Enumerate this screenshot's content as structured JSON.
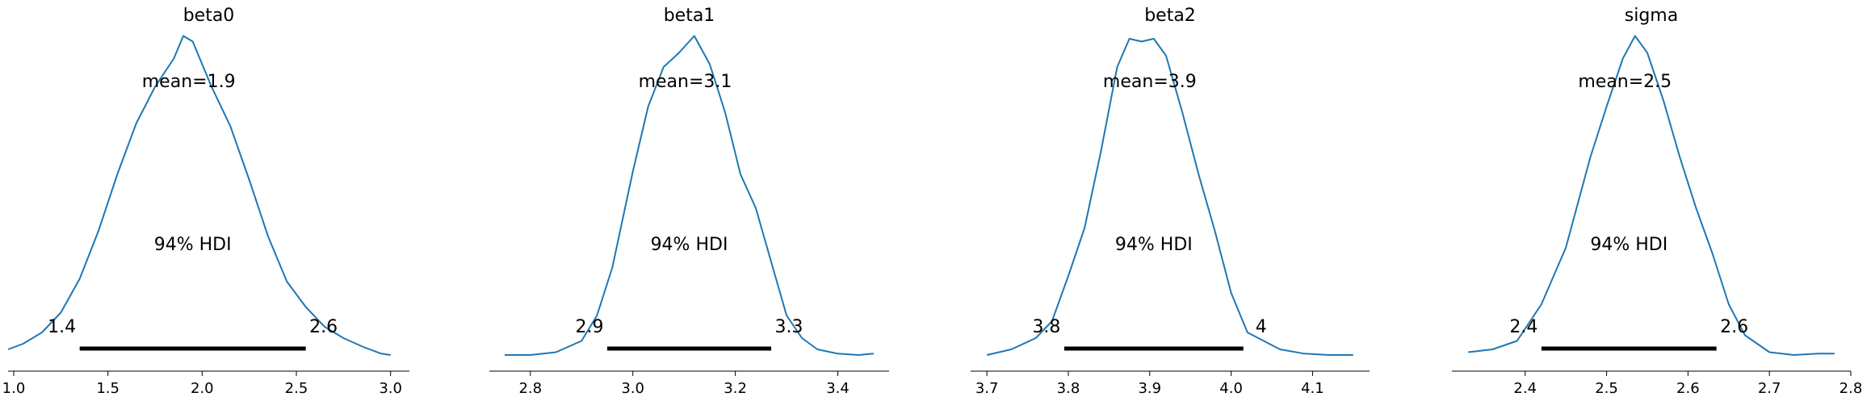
{
  "chart_data": [
    {
      "type": "line",
      "title": "beta0",
      "mean_label": "mean=1.9",
      "hdi_label": "94% HDI",
      "hdi": [
        1.35,
        2.55
      ],
      "hdi_low_label": "1.4",
      "hdi_high_label": "2.6",
      "xlim": [
        0.97,
        3.1
      ],
      "x_ticks": [
        1.0,
        1.5,
        2.0,
        2.5,
        3.0
      ],
      "x_tick_labels": [
        "1.0",
        "1.5",
        "2.0",
        "2.5",
        "3.0"
      ],
      "color": "#1f77b4",
      "density": {
        "x": [
          0.97,
          1.05,
          1.15,
          1.25,
          1.35,
          1.45,
          1.55,
          1.65,
          1.75,
          1.85,
          1.9,
          1.95,
          2.0,
          2.05,
          2.15,
          2.25,
          2.35,
          2.45,
          2.55,
          2.65,
          2.75,
          2.85,
          2.95,
          3.0
        ],
        "y": [
          0.02,
          0.04,
          0.08,
          0.15,
          0.27,
          0.44,
          0.64,
          0.82,
          0.95,
          1.05,
          1.13,
          1.11,
          1.03,
          0.95,
          0.81,
          0.62,
          0.42,
          0.26,
          0.17,
          0.1,
          0.06,
          0.03,
          0.005,
          0.0
        ]
      }
    },
    {
      "type": "line",
      "title": "beta1",
      "mean_label": "mean=3.1",
      "hdi_label": "94% HDI",
      "hdi": [
        2.95,
        3.27
      ],
      "hdi_low_label": "2.9",
      "hdi_high_label": "3.3",
      "xlim": [
        2.72,
        3.5
      ],
      "x_ticks": [
        2.8,
        3.0,
        3.2,
        3.4
      ],
      "x_tick_labels": [
        "2.8",
        "3.0",
        "3.2",
        "3.4"
      ],
      "color": "#1f77b4",
      "density": {
        "x": [
          2.75,
          2.8,
          2.85,
          2.9,
          2.93,
          2.96,
          3.0,
          3.03,
          3.06,
          3.09,
          3.12,
          3.15,
          3.18,
          3.21,
          3.24,
          3.27,
          3.3,
          3.33,
          3.36,
          3.4,
          3.44,
          3.47
        ],
        "y": [
          0.0,
          0.0,
          0.01,
          0.05,
          0.14,
          0.31,
          0.65,
          0.88,
          1.02,
          1.07,
          1.13,
          1.03,
          0.86,
          0.64,
          0.52,
          0.33,
          0.14,
          0.06,
          0.02,
          0.005,
          0.0,
          0.005
        ]
      }
    },
    {
      "type": "line",
      "title": "beta2",
      "mean_label": "mean=3.9",
      "hdi_label": "94% HDI",
      "hdi": [
        3.795,
        4.015
      ],
      "hdi_low_label": "3.8",
      "hdi_high_label": "4",
      "xlim": [
        3.68,
        4.17
      ],
      "x_ticks": [
        3.7,
        3.8,
        3.9,
        4.0,
        4.1
      ],
      "x_tick_labels": [
        "3.7",
        "3.8",
        "3.9",
        "4.0",
        "4.1"
      ],
      "color": "#1f77b4",
      "density": {
        "x": [
          3.7,
          3.73,
          3.76,
          3.78,
          3.8,
          3.82,
          3.84,
          3.86,
          3.875,
          3.89,
          3.905,
          3.92,
          3.94,
          3.96,
          3.98,
          4.0,
          4.02,
          4.04,
          4.06,
          4.09,
          4.12,
          4.15
        ],
        "y": [
          0.0,
          0.02,
          0.06,
          0.12,
          0.28,
          0.45,
          0.72,
          1.02,
          1.12,
          1.11,
          1.12,
          1.06,
          0.86,
          0.64,
          0.44,
          0.22,
          0.08,
          0.05,
          0.02,
          0.005,
          0.0,
          0.0
        ]
      }
    },
    {
      "type": "line",
      "title": "sigma",
      "mean_label": "mean=2.5",
      "hdi_label": "94% HDI",
      "hdi": [
        2.42,
        2.635
      ],
      "hdi_low_label": "2.4",
      "hdi_high_label": "2.6",
      "xlim": [
        2.31,
        2.8
      ],
      "x_ticks": [
        2.4,
        2.5,
        2.6,
        2.7,
        2.8
      ],
      "x_tick_labels": [
        "2.4",
        "2.5",
        "2.6",
        "2.7",
        "2.8"
      ],
      "color": "#1f77b4",
      "density": {
        "x": [
          2.33,
          2.36,
          2.39,
          2.42,
          2.45,
          2.48,
          2.5,
          2.52,
          2.535,
          2.55,
          2.57,
          2.59,
          2.61,
          2.63,
          2.65,
          2.67,
          2.7,
          2.73,
          2.76,
          2.78
        ],
        "y": [
          0.01,
          0.02,
          0.05,
          0.18,
          0.38,
          0.7,
          0.88,
          1.05,
          1.13,
          1.07,
          0.9,
          0.7,
          0.52,
          0.36,
          0.18,
          0.07,
          0.01,
          0.0,
          0.005,
          0.005
        ]
      }
    }
  ]
}
